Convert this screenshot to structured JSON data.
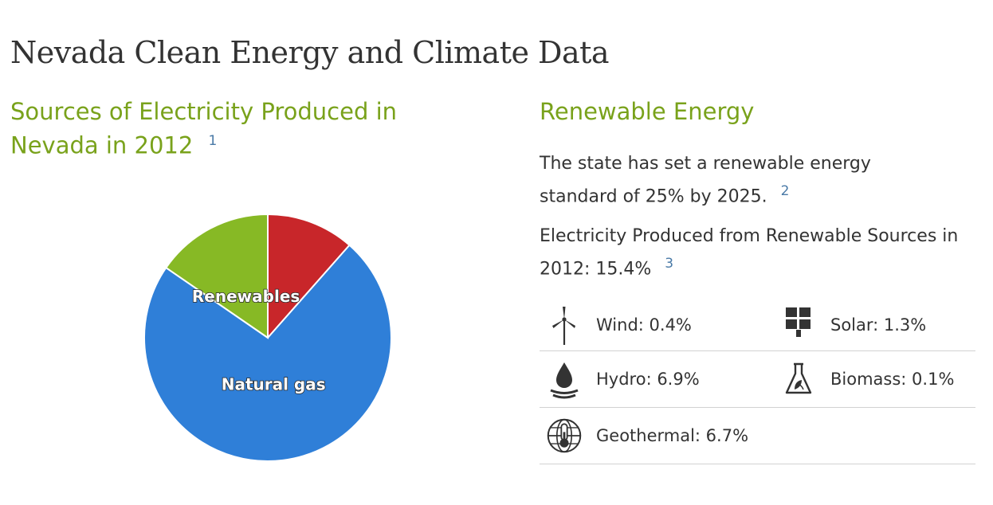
{
  "page": {
    "title": "Nevada Clean Energy and Climate Data"
  },
  "left": {
    "heading": "Sources of Electricity Produced in Nevada in 2012",
    "footnote": "1"
  },
  "chart_data": {
    "type": "pie",
    "slices": [
      {
        "label": "",
        "value": 11.5,
        "color": "#c8262a"
      },
      {
        "label": "Natural gas",
        "value": 73.1,
        "color": "#2f7fd8"
      },
      {
        "label": "Renewables",
        "value": 15.4,
        "color": "#87b925"
      }
    ],
    "start_angle_deg": 0,
    "direction": "clockwise",
    "labels_shown": [
      "Natural gas",
      "Renewables"
    ]
  },
  "right": {
    "heading": "Renewable Energy",
    "standard_text": "The state has set a renewable energy standard of 25% by 2025.",
    "standard_footnote": "2",
    "renewable_text": "Electricity Produced from Renewable Sources in 2012: 15.4%",
    "renewable_footnote": "3",
    "sources": [
      {
        "icon": "wind-turbine-icon",
        "label": "Wind: 0.4%"
      },
      {
        "icon": "solar-panel-icon",
        "label": "Solar: 1.3%"
      },
      {
        "icon": "water-drop-icon",
        "label": "Hydro: 6.9%"
      },
      {
        "icon": "flask-leaf-icon",
        "label": "Biomass: 0.1%"
      },
      {
        "icon": "globe-thermometer-icon",
        "label": "Geothermal: 6.7%"
      }
    ]
  },
  "colors": {
    "heading_green": "#79a21b",
    "footnote_blue": "#4a7aa7",
    "text": "#333333"
  }
}
